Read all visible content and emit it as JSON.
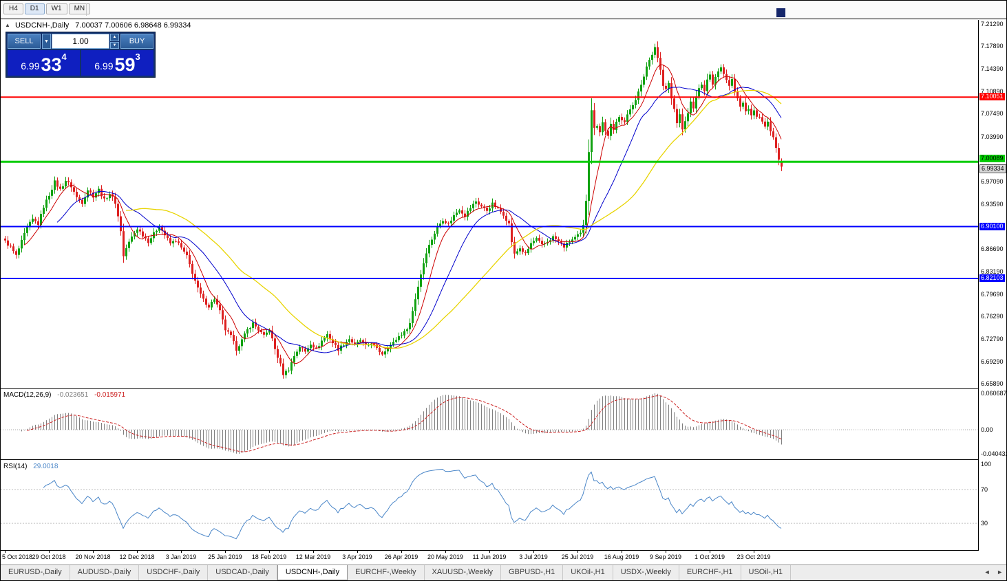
{
  "toolbar": {
    "timeframes": [
      "H4",
      "D1",
      "W1",
      "MN"
    ],
    "active": "D1"
  },
  "chart": {
    "symbol": "USDCNH-,Daily",
    "ohlc_text": "7.00037 7.00606 6.98648 6.99334",
    "collapse_icon": "▲"
  },
  "trade_panel": {
    "sell_label": "SELL",
    "buy_label": "BUY",
    "volume": "1.00",
    "dropdown_icon": "▼",
    "spin_up": "▲",
    "spin_down": "▼",
    "sell_price": {
      "major": "6.99",
      "pips": "33",
      "point": "4"
    },
    "buy_price": {
      "major": "6.99",
      "pips": "59",
      "point": "3"
    }
  },
  "macd": {
    "label": "MACD(12,26,9)",
    "value_main": "-0.023651",
    "value_signal": "-0.015971",
    "axis_labels": [
      "0.060687",
      "0.00",
      "-0.040432"
    ]
  },
  "rsi": {
    "label": "RSI(14)",
    "value": "29.0018",
    "axis_labels": [
      "100",
      "70",
      "30"
    ],
    "levels": [
      70,
      30
    ]
  },
  "price_axis": {
    "ticks": [
      {
        "label": "7.21290",
        "price": 7.2129
      },
      {
        "label": "7.17890",
        "price": 7.1789
      },
      {
        "label": "7.14390",
        "price": 7.1439
      },
      {
        "label": "7.10890",
        "price": 7.1089
      },
      {
        "label": "7.07490",
        "price": 7.0749
      },
      {
        "label": "7.03990",
        "price": 7.0399
      },
      {
        "label": "7.00490",
        "price": 7.0049
      },
      {
        "label": "6.97090",
        "price": 6.9709
      },
      {
        "label": "6.93590",
        "price": 6.9359
      },
      {
        "label": "6.90090",
        "price": 6.9009
      },
      {
        "label": "6.86690",
        "price": 6.8669
      },
      {
        "label": "6.83190",
        "price": 6.8319
      },
      {
        "label": "6.79690",
        "price": 6.7969
      },
      {
        "label": "6.76290",
        "price": 6.7629
      },
      {
        "label": "6.72790",
        "price": 6.7279
      },
      {
        "label": "6.69290",
        "price": 6.6929
      },
      {
        "label": "6.65890",
        "price": 6.6589
      }
    ],
    "badges": [
      {
        "label": "7.10051",
        "price": 7.10051,
        "bg": "#ff0000",
        "fg": "#ffffff",
        "dy": 0
      },
      {
        "label": "7.00089",
        "price": 7.00089,
        "bg": "#00cc00",
        "fg": "#000000",
        "dy": -4
      },
      {
        "label": "6.99334",
        "price": 6.99334,
        "bg": "#d8d8d8",
        "fg": "#000000",
        "dy": 3,
        "border": "#555555"
      },
      {
        "label": "6.90100",
        "price": 6.901,
        "bg": "#0000ff",
        "fg": "#ffffff",
        "dy": 0
      },
      {
        "label": "6.82103",
        "price": 6.82103,
        "bg": "#0000ff",
        "fg": "#ffffff",
        "dy": 0
      }
    ]
  },
  "date_axis": {
    "step": 16,
    "labels": [
      "5 Oct 2018",
      "29 Oct 2018",
      "20 Nov 2018",
      "12 Dec 2018",
      "3 Jan 2019",
      "25 Jan 2019",
      "18 Feb 2019",
      "12 Mar 2019",
      "3 Apr 2019",
      "26 Apr 2019",
      "20 May 2019",
      "11 Jun 2019",
      "3 Jul 2019",
      "25 Jul 2019",
      "16 Aug 2019",
      "9 Sep 2019",
      "1 Oct 2019",
      "23 Oct 2019"
    ]
  },
  "tabs": {
    "items": [
      "EURUSD-,Daily",
      "AUDUSD-,Daily",
      "USDCHF-,Daily",
      "USDCAD-,Daily",
      "USDCNH-,Daily",
      "EURCHF-,Weekly",
      "XAUUSD-,Weekly",
      "GBPUSD-,H1",
      "UKOil-,H1",
      "USDX-,Weekly",
      "EURCHF-,H1",
      "USOil-,H1"
    ],
    "active_index": 4,
    "arrow_left": "◄",
    "arrow_right": "►"
  },
  "chart_data": {
    "type": "candlestick",
    "symbol": "USDCNH",
    "timeframe": "Daily",
    "count": 283,
    "y_range": [
      6.6525,
      7.2185
    ],
    "noise": 0.005,
    "last_candle": [
      7.00037,
      7.00606,
      6.98648,
      6.99334
    ],
    "colors": {
      "up": "#11a211",
      "down": "#dd2020"
    },
    "moving_averages": [
      {
        "period": 8,
        "color": "#cc0000",
        "width": 1
      },
      {
        "period": 20,
        "color": "#0000cc",
        "width": 1
      },
      {
        "period": 45,
        "color": "#e8d400",
        "width": 1.3
      }
    ],
    "hlines": [
      {
        "price": 7.10051,
        "color": "#ff0000",
        "width": 2
      },
      {
        "price": 7.00089,
        "color": "#00cc00",
        "width": 3
      },
      {
        "price": 6.901,
        "color": "#0000ff",
        "width": 2
      },
      {
        "price": 6.82103,
        "color": "#0000ff",
        "width": 2
      }
    ],
    "macd": {
      "fast": 12,
      "slow": 26,
      "signal": 9,
      "scale_max": 0.060687,
      "scale_min": -0.040432
    },
    "rsi": {
      "period": 14,
      "current": 29.0018
    },
    "anchors": [
      [
        0,
        6.878
      ],
      [
        2,
        6.869
      ],
      [
        4,
        6.856
      ],
      [
        6,
        6.878
      ],
      [
        8,
        6.9
      ],
      [
        10,
        6.912
      ],
      [
        12,
        6.905
      ],
      [
        14,
        6.932
      ],
      [
        16,
        6.95
      ],
      [
        18,
        6.97
      ],
      [
        20,
        6.958
      ],
      [
        22,
        6.972
      ],
      [
        24,
        6.963
      ],
      [
        26,
        6.946
      ],
      [
        28,
        6.938
      ],
      [
        30,
        6.958
      ],
      [
        32,
        6.948
      ],
      [
        34,
        6.958
      ],
      [
        36,
        6.942
      ],
      [
        38,
        6.952
      ],
      [
        40,
        6.938
      ],
      [
        42,
        6.895
      ],
      [
        43,
        6.855
      ],
      [
        44,
        6.868
      ],
      [
        46,
        6.885
      ],
      [
        48,
        6.898
      ],
      [
        50,
        6.888
      ],
      [
        52,
        6.878
      ],
      [
        54,
        6.89
      ],
      [
        56,
        6.902
      ],
      [
        58,
        6.888
      ],
      [
        60,
        6.875
      ],
      [
        62,
        6.88
      ],
      [
        64,
        6.868
      ],
      [
        66,
        6.855
      ],
      [
        68,
        6.83
      ],
      [
        70,
        6.805
      ],
      [
        72,
        6.788
      ],
      [
        74,
        6.778
      ],
      [
        76,
        6.79
      ],
      [
        78,
        6.77
      ],
      [
        80,
        6.742
      ],
      [
        82,
        6.732
      ],
      [
        84,
        6.712
      ],
      [
        86,
        6.726
      ],
      [
        88,
        6.742
      ],
      [
        90,
        6.752
      ],
      [
        92,
        6.742
      ],
      [
        94,
        6.732
      ],
      [
        96,
        6.742
      ],
      [
        98,
        6.712
      ],
      [
        100,
        6.688
      ],
      [
        101,
        6.674
      ],
      [
        103,
        6.681
      ],
      [
        105,
        6.702
      ],
      [
        107,
        6.716
      ],
      [
        109,
        6.708
      ],
      [
        111,
        6.721
      ],
      [
        113,
        6.712
      ],
      [
        115,
        6.725
      ],
      [
        117,
        6.735
      ],
      [
        119,
        6.722
      ],
      [
        121,
        6.712
      ],
      [
        123,
        6.72
      ],
      [
        125,
        6.728
      ],
      [
        127,
        6.718
      ],
      [
        129,
        6.726
      ],
      [
        131,
        6.716
      ],
      [
        133,
        6.722
      ],
      [
        135,
        6.712
      ],
      [
        137,
        6.705
      ],
      [
        139,
        6.715
      ],
      [
        141,
        6.722
      ],
      [
        143,
        6.732
      ],
      [
        145,
        6.738
      ],
      [
        147,
        6.752
      ],
      [
        149,
        6.79
      ],
      [
        151,
        6.828
      ],
      [
        153,
        6.862
      ],
      [
        155,
        6.882
      ],
      [
        157,
        6.9
      ],
      [
        159,
        6.912
      ],
      [
        161,
        6.905
      ],
      [
        163,
        6.918
      ],
      [
        165,
        6.928
      ],
      [
        167,
        6.918
      ],
      [
        169,
        6.93
      ],
      [
        171,
        6.94
      ],
      [
        173,
        6.932
      ],
      [
        175,
        6.926
      ],
      [
        177,
        6.936
      ],
      [
        179,
        6.928
      ],
      [
        181,
        6.92
      ],
      [
        183,
        6.905
      ],
      [
        184,
        6.878
      ],
      [
        185,
        6.858
      ],
      [
        187,
        6.868
      ],
      [
        189,
        6.858
      ],
      [
        191,
        6.875
      ],
      [
        193,
        6.882
      ],
      [
        195,
        6.872
      ],
      [
        197,
        6.878
      ],
      [
        199,
        6.885
      ],
      [
        201,
        6.878
      ],
      [
        203,
        6.87
      ],
      [
        205,
        6.878
      ],
      [
        207,
        6.884
      ],
      [
        209,
        6.89
      ],
      [
        210,
        6.902
      ],
      [
        211,
        6.942
      ],
      [
        212,
        7.018
      ],
      [
        213,
        7.082
      ],
      [
        214,
        7.052
      ],
      [
        215,
        7.058
      ],
      [
        216,
        7.048
      ],
      [
        217,
        7.062
      ],
      [
        218,
        7.048
      ],
      [
        219,
        7.042
      ],
      [
        220,
        7.058
      ],
      [
        221,
        7.048
      ],
      [
        222,
        7.062
      ],
      [
        223,
        7.072
      ],
      [
        225,
        7.062
      ],
      [
        227,
        7.082
      ],
      [
        229,
        7.098
      ],
      [
        231,
        7.118
      ],
      [
        233,
        7.148
      ],
      [
        235,
        7.168
      ],
      [
        236,
        7.178
      ],
      [
        237,
        7.162
      ],
      [
        238,
        7.142
      ],
      [
        239,
        7.118
      ],
      [
        240,
        7.112
      ],
      [
        241,
        7.122
      ],
      [
        242,
        7.098
      ],
      [
        243,
        7.082
      ],
      [
        244,
        7.062
      ],
      [
        245,
        7.072
      ],
      [
        246,
        7.052
      ],
      [
        247,
        7.062
      ],
      [
        248,
        7.078
      ],
      [
        249,
        7.092
      ],
      [
        250,
        7.082
      ],
      [
        251,
        7.102
      ],
      [
        252,
        7.112
      ],
      [
        253,
        7.122
      ],
      [
        254,
        7.112
      ],
      [
        255,
        7.128
      ],
      [
        256,
        7.135
      ],
      [
        257,
        7.122
      ],
      [
        258,
        7.132
      ],
      [
        259,
        7.142
      ],
      [
        260,
        7.148
      ],
      [
        261,
        7.138
      ],
      [
        262,
        7.128
      ],
      [
        263,
        7.118
      ],
      [
        264,
        7.128
      ],
      [
        265,
        7.108
      ],
      [
        266,
        7.098
      ],
      [
        267,
        7.088
      ],
      [
        268,
        7.092
      ],
      [
        269,
        7.078
      ],
      [
        270,
        7.082
      ],
      [
        271,
        7.072
      ],
      [
        272,
        7.078
      ],
      [
        273,
        7.068
      ],
      [
        274,
        7.072
      ],
      [
        275,
        7.062
      ],
      [
        276,
        7.055
      ],
      [
        277,
        7.062
      ],
      [
        278,
        7.048
      ],
      [
        279,
        7.038
      ],
      [
        280,
        7.022
      ],
      [
        281,
        7.005
      ],
      [
        282,
        6.9933
      ]
    ]
  }
}
